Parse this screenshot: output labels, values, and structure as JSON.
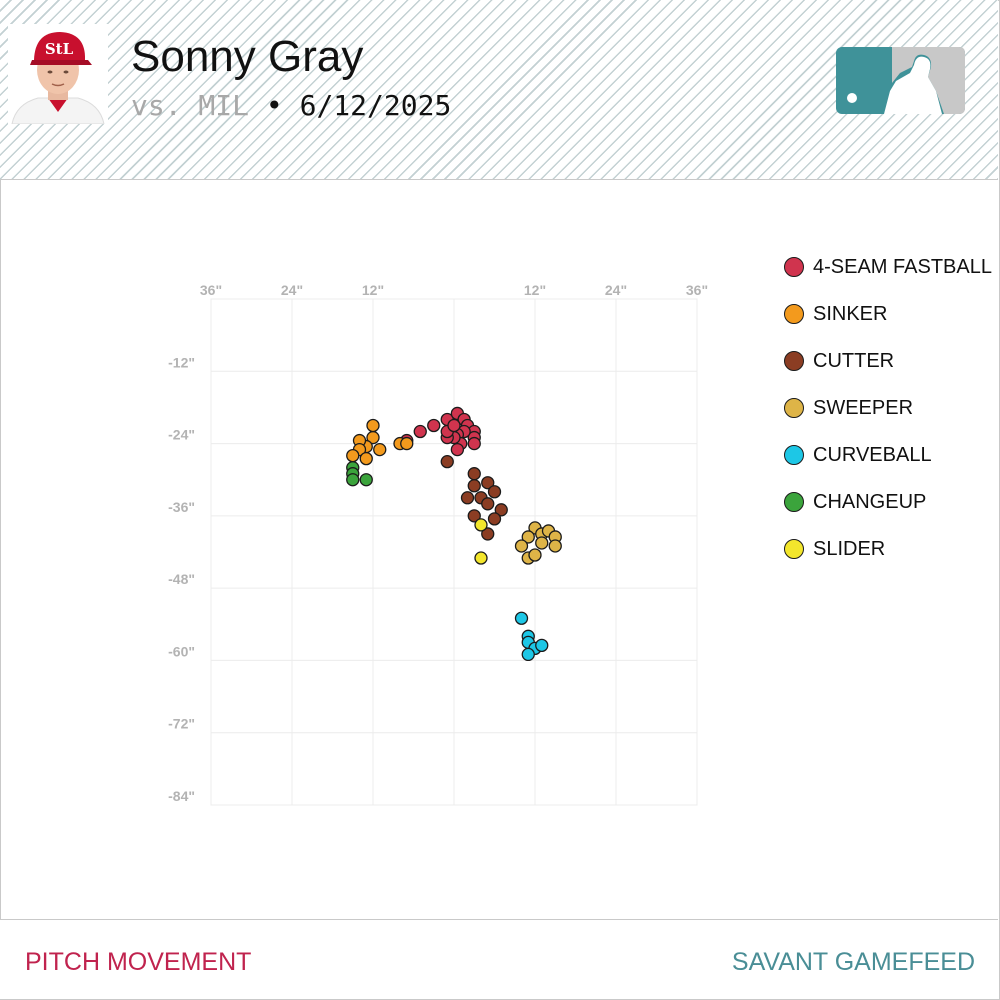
{
  "header": {
    "player_name": "Sonny Gray",
    "opponent": "vs. MIL",
    "separator": "•",
    "date": "6/12/2025",
    "logo_color": "#3f9299"
  },
  "footer": {
    "left_label": "PITCH MOVEMENT",
    "right_label": "SAVANT GAMEFEED",
    "left_color": "#c0234e",
    "right_color": "#4a8e96"
  },
  "chart_data": {
    "type": "scatter",
    "xlabel": "",
    "ylabel": "",
    "xlim": [
      -36,
      36
    ],
    "ylim": [
      -84,
      0
    ],
    "x_ticks": [
      "36\"",
      "24\"",
      "12\"",
      "",
      "12\"",
      "24\"",
      "36\""
    ],
    "y_ticks": [
      "-12\"",
      "-24\"",
      "-36\"",
      "-48\"",
      "-60\"",
      "-72\"",
      "-84\""
    ],
    "grid": true,
    "legend_position": "right",
    "series": [
      {
        "name": "4-SEAM FASTBALL",
        "color": "#d0344e",
        "points": [
          [
            -3,
            -21
          ],
          [
            -1,
            -20
          ],
          [
            0.5,
            -19
          ],
          [
            1.5,
            -20
          ],
          [
            2,
            -21
          ],
          [
            3,
            -22
          ],
          [
            3,
            -23
          ],
          [
            3,
            -24
          ],
          [
            1.5,
            -22
          ],
          [
            0.5,
            -22.5
          ],
          [
            1,
            -24
          ],
          [
            0,
            -23
          ],
          [
            0.5,
            -25
          ],
          [
            -1,
            -23
          ],
          [
            -1,
            -22
          ],
          [
            0,
            -21
          ],
          [
            -5,
            -22
          ],
          [
            -7,
            -23.5
          ]
        ]
      },
      {
        "name": "SINKER",
        "color": "#f39a1d",
        "points": [
          [
            -8,
            -24
          ],
          [
            -11,
            -25
          ],
          [
            -12,
            -23
          ],
          [
            -12,
            -21
          ],
          [
            -13,
            -24.5
          ],
          [
            -14,
            -23.5
          ],
          [
            -14,
            -25
          ],
          [
            -13,
            -26.5
          ],
          [
            -15,
            -26
          ],
          [
            -7,
            -24
          ]
        ]
      },
      {
        "name": "CUTTER",
        "color": "#8b3d23",
        "points": [
          [
            -1,
            -27
          ],
          [
            3,
            -29
          ],
          [
            3,
            -31
          ],
          [
            5,
            -30.5
          ],
          [
            6,
            -32
          ],
          [
            2,
            -33
          ],
          [
            4,
            -33
          ],
          [
            5,
            -34
          ],
          [
            7,
            -35
          ],
          [
            6,
            -36.5
          ],
          [
            3,
            -36
          ],
          [
            5,
            -39
          ]
        ]
      },
      {
        "name": "SWEEPER",
        "color": "#deb447",
        "points": [
          [
            12,
            -38
          ],
          [
            13,
            -39
          ],
          [
            14,
            -38.5
          ],
          [
            15,
            -39.5
          ],
          [
            15,
            -41
          ],
          [
            13,
            -40.5
          ],
          [
            11,
            -39.5
          ],
          [
            10,
            -41
          ],
          [
            11,
            -43
          ],
          [
            12,
            -42.5
          ]
        ]
      },
      {
        "name": "CURVEBALL",
        "color": "#1dc7e6",
        "points": [
          [
            10,
            -53
          ],
          [
            11,
            -56
          ],
          [
            11,
            -57
          ],
          [
            12,
            -58
          ],
          [
            13,
            -57.5
          ],
          [
            11,
            -59
          ]
        ]
      },
      {
        "name": "CHANGEUP",
        "color": "#3ba43c",
        "points": [
          [
            -15,
            -28
          ],
          [
            -15,
            -29
          ],
          [
            -15,
            -30
          ],
          [
            -13,
            -30
          ]
        ]
      },
      {
        "name": "SLIDER",
        "color": "#f3e62c",
        "points": [
          [
            4,
            -37.5
          ],
          [
            4,
            -43
          ]
        ]
      }
    ]
  }
}
